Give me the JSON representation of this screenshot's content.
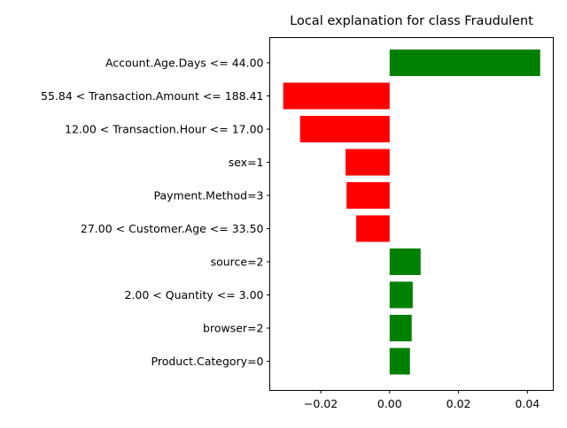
{
  "chart_data": {
    "type": "bar",
    "orientation": "horizontal",
    "title": "Local explanation for class Fraudulent",
    "xlabel": "",
    "ylabel": "",
    "xlim": [
      -0.0348,
      0.0475
    ],
    "grid": false,
    "legend": "none",
    "colors": {
      "positive": "#008000",
      "negative": "#ff0000"
    },
    "categories": [
      "Account.Age.Days <= 44.00",
      "55.84 < Transaction.Amount <= 188.41",
      "12.00 < Transaction.Hour <= 17.00",
      "sex=1",
      "Payment.Method=3",
      "27.00 < Customer.Age <= 33.50",
      "source=2",
      "2.00 < Quantity <= 3.00",
      "browser=2",
      "Product.Category=0"
    ],
    "values": [
      0.0437,
      -0.0309,
      -0.026,
      -0.0128,
      -0.0125,
      -0.0097,
      0.009,
      0.0067,
      0.0064,
      0.0059
    ],
    "xticks": [
      -0.02,
      0.0,
      0.02,
      0.04
    ],
    "xtick_labels": [
      "−0.02",
      "0.00",
      "0.02",
      "0.04"
    ]
  }
}
